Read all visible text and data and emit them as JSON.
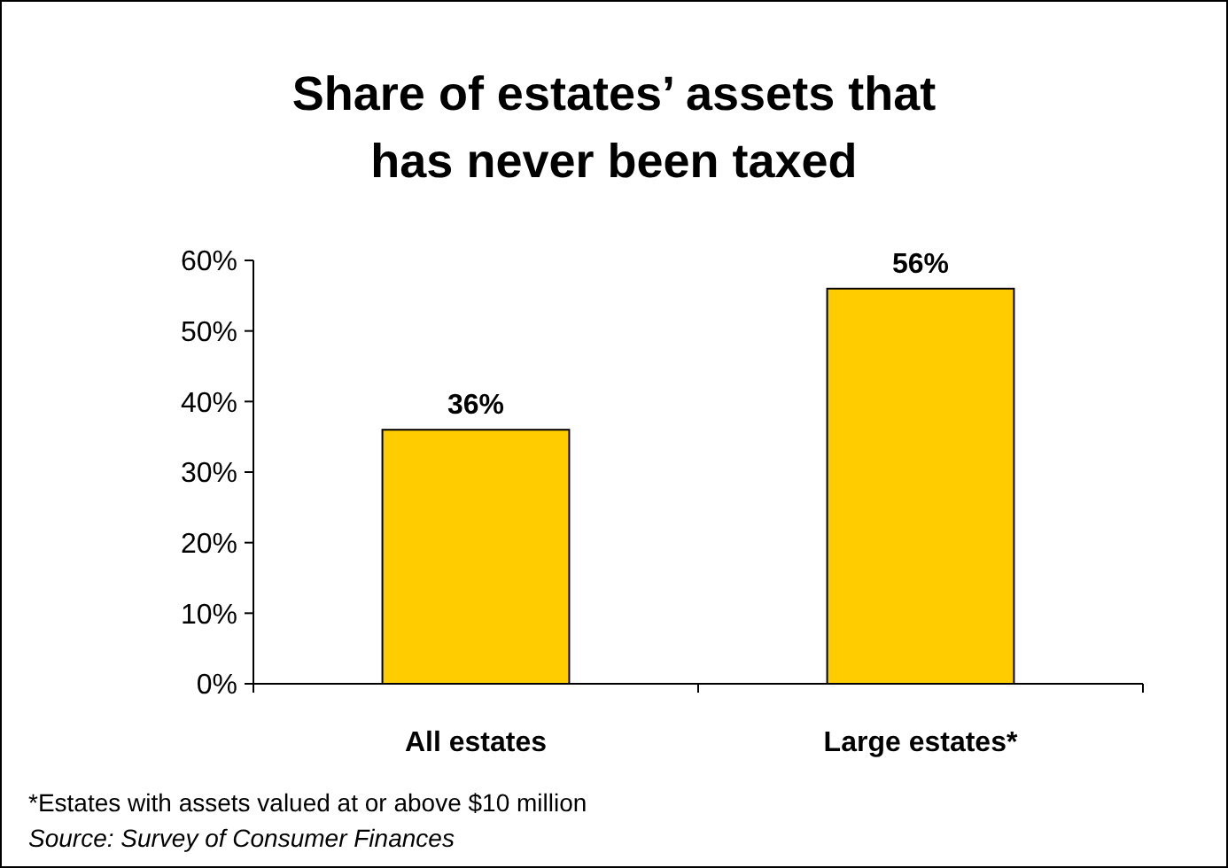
{
  "chart_data": {
    "type": "bar",
    "title": "Share of estates’ assets that has never been taxed",
    "categories": [
      "All estates",
      "Large estates*"
    ],
    "values": [
      36,
      56
    ],
    "color": "#ffcc00",
    "value_labels": [
      "36%",
      "56%"
    ],
    "ylim": [
      0,
      60
    ],
    "yticks": [
      {
        "value": 0,
        "label": "0%"
      },
      {
        "value": 10,
        "label": "10%"
      },
      {
        "value": 20,
        "label": "20%"
      },
      {
        "value": 30,
        "label": "30%"
      },
      {
        "value": 40,
        "label": "40%"
      },
      {
        "value": 50,
        "label": "50%"
      },
      {
        "value": 60,
        "label": "60%"
      }
    ],
    "grid": false,
    "annotations": [
      "*Estates with assets valued at or above $10 million",
      "Source: Survey of Consumer Finances"
    ]
  }
}
